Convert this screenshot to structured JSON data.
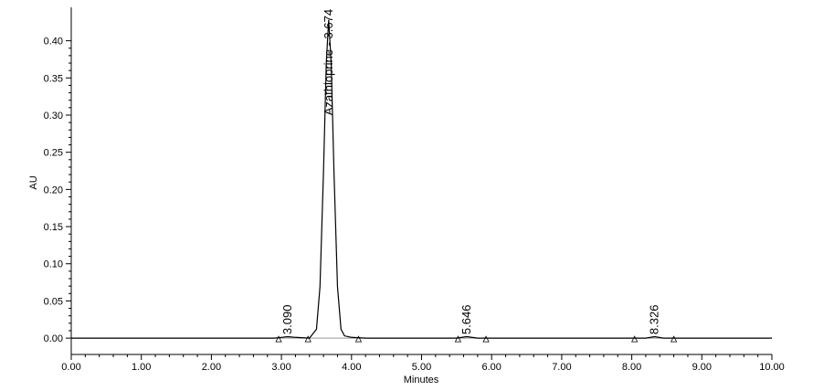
{
  "chart_data": {
    "type": "line",
    "x_label": "Minutes",
    "y_label": "AU",
    "xlim": [
      0,
      10
    ],
    "ylim": [
      -0.022,
      0.445
    ],
    "xticks": [
      {
        "value": 0,
        "label": "0.00"
      },
      {
        "value": 1,
        "label": "1.00"
      },
      {
        "value": 2,
        "label": "2.00"
      },
      {
        "value": 3,
        "label": "3.00"
      },
      {
        "value": 4,
        "label": "4.00"
      },
      {
        "value": 5,
        "label": "5.00"
      },
      {
        "value": 6,
        "label": "6.00"
      },
      {
        "value": 7,
        "label": "7.00"
      },
      {
        "value": 8,
        "label": "8.00"
      },
      {
        "value": 9,
        "label": "9.00"
      },
      {
        "value": 10,
        "label": "10.00"
      }
    ],
    "yticks": [
      {
        "value": 0,
        "label": "0.00"
      },
      {
        "value": 0.05,
        "label": "0.05"
      },
      {
        "value": 0.1,
        "label": "0.10"
      },
      {
        "value": 0.15,
        "label": "0.15"
      },
      {
        "value": 0.2,
        "label": "0.20"
      },
      {
        "value": 0.25,
        "label": "0.25"
      },
      {
        "value": 0.3,
        "label": "0.30"
      },
      {
        "value": 0.35,
        "label": "0.35"
      },
      {
        "value": 0.4,
        "label": "0.40"
      }
    ],
    "series": [
      {
        "color": "#000000",
        "x": [
          0,
          1.5,
          2.9,
          3.0,
          3.09,
          3.2,
          3.4,
          3.5,
          3.55,
          3.6,
          3.64,
          3.674,
          3.71,
          3.75,
          3.8,
          3.85,
          3.9,
          4.0,
          4.2,
          5.5,
          5.646,
          5.8,
          8.2,
          8.326,
          8.45,
          10
        ],
        "values": [
          0,
          0,
          0,
          0.001,
          0.002,
          0.001,
          0,
          0.012,
          0.069,
          0.223,
          0.37,
          0.428,
          0.37,
          0.223,
          0.069,
          0.012,
          0.003,
          0.001,
          0,
          0,
          0.002,
          0,
          0,
          0.002,
          0,
          0
        ]
      }
    ],
    "integration_markers_x": [
      2.96,
      3.38,
      4.1,
      5.52,
      5.92,
      8.04,
      8.6
    ],
    "annotations": [
      {
        "text": "3.090",
        "x": 3.09
      },
      {
        "text": "Azathioprine - 3.674",
        "x": 3.674
      },
      {
        "text": "5.646",
        "x": 5.646
      },
      {
        "text": "8.326",
        "x": 8.326
      }
    ]
  }
}
